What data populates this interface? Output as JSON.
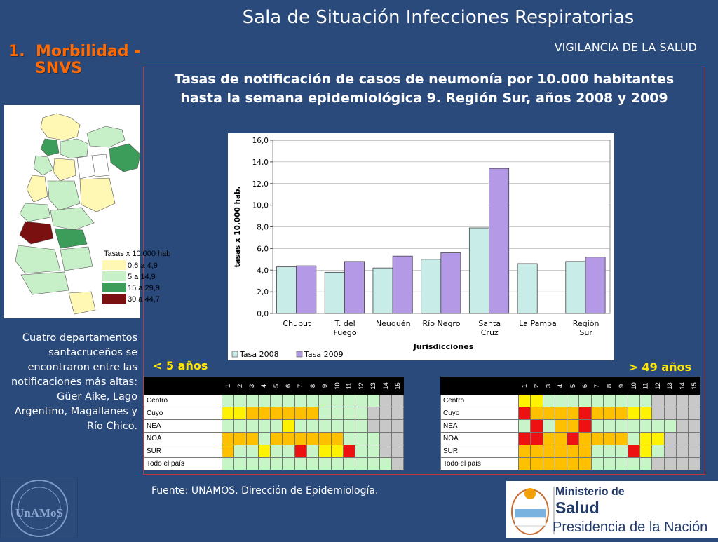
{
  "header": {
    "title": "Sala de Situación Infecciones Respiratorias",
    "subtitle": "VIGILANCIA DE LA SALUD",
    "section_number": "1.",
    "section_line1": "Morbilidad -",
    "section_line2": "SNVS"
  },
  "chart_heading": "Tasas de notificación de casos de neumonía por 10.000 habitantes hasta la semana epidemiológica 9. Región Sur, años 2008 y 2009",
  "chart_data": {
    "type": "bar",
    "categories": [
      [
        "Chubut"
      ],
      [
        "T. del",
        "Fuego"
      ],
      [
        "Neuquén"
      ],
      [
        "Río Negro"
      ],
      [
        "Santa",
        "Cruz"
      ],
      [
        "La Pampa"
      ],
      [
        "Región",
        "Sur"
      ]
    ],
    "series": [
      {
        "name": "Tasa  2008",
        "color": "#c8ece8",
        "values": [
          4.3,
          3.8,
          4.2,
          5.0,
          7.9,
          4.6,
          4.8
        ]
      },
      {
        "name": "Tasa 2009",
        "color": "#b49ae6",
        "values": [
          4.4,
          4.8,
          5.3,
          5.6,
          13.4,
          null,
          5.2
        ]
      }
    ],
    "xlabel": "Jurisdicciones",
    "ylabel": "tasas x 10.000 hab.",
    "ylim": [
      0,
      16
    ],
    "yticks": [
      "0,0",
      "2,0",
      "4,0",
      "6,0",
      "8,0",
      "10,0",
      "12,0",
      "14,0",
      "16,0"
    ],
    "grid": true,
    "legend_position": "bottom-left"
  },
  "map": {
    "legend_title": "Tasas x 10.000 hab",
    "legend_items": [
      {
        "label": "0,6 a 4,9",
        "color": "#fff8b4"
      },
      {
        "label": "5 a 14,9",
        "color": "#c8f0c8"
      },
      {
        "label": "15 a 29,9",
        "color": "#3c9c5a"
      },
      {
        "label": "30 a 44,7",
        "color": "#7a1010"
      }
    ]
  },
  "map_note": "Cuatro departamentos santacruceños se encontraron entre las notificaciones más altas: Güer Aike, Lago Argentino, Magallanes y Río Chico.",
  "heatmaps": {
    "young_label": "< 5 años",
    "old_label": "> 49 años",
    "weeks": [
      "1",
      "2",
      "3",
      "4",
      "5",
      "6",
      "7",
      "8",
      "9",
      "10",
      "11",
      "12",
      "13",
      "14",
      "15"
    ],
    "colors": {
      "g": "#c8f5c8",
      "y": "#fff200",
      "o": "#ffc000",
      "r": "#ee1111",
      "x": "#c8c8c8"
    },
    "young": {
      "rows": [
        {
          "label": "Centro",
          "cells": "gggggggggggggxx"
        },
        {
          "label": "Cuyo",
          "cells": "yyooooooggggxxx"
        },
        {
          "label": "NEA",
          "cells": "gggggyggggggxxx"
        },
        {
          "label": "NOA",
          "cells": "ooogoooooogggxx"
        },
        {
          "label": "SUR",
          "cells": "oggyggrgyyrggxx"
        },
        {
          "label": "Todo el país",
          "cells": "ggggggggggggggx"
        }
      ]
    },
    "old": {
      "rows": [
        {
          "label": "Centro",
          "cells": "yygggggggggxxxx"
        },
        {
          "label": "Cuyo",
          "cells": "rooooroooyyxxxx"
        },
        {
          "label": "NEA",
          "cells": "grgoorgggggggxx"
        },
        {
          "label": "NOA",
          "cells": "rrooroooogyyxxx"
        },
        {
          "label": "SUR",
          "cells": "oooooogggrygxxx"
        },
        {
          "label": "Todo el país",
          "cells": "oooooogggggxxxx"
        }
      ]
    }
  },
  "source_note": "Fuente: UNAMOS. Dirección de Epidemiología.",
  "logos": {
    "unamos_text": "UnAMoS",
    "ministry_line1": "Ministerio de",
    "ministry_line2": "Salud",
    "ministry_line3": "Presidencia de la Nación"
  }
}
